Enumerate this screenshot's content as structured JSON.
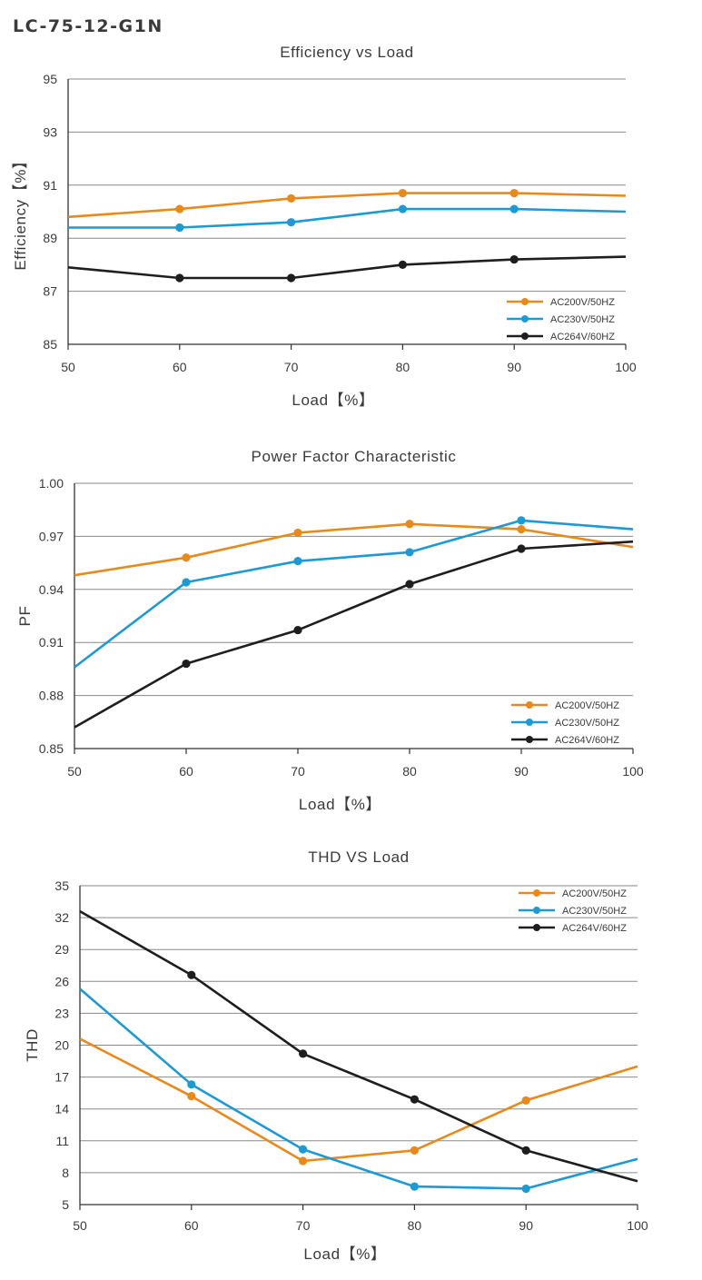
{
  "page": {
    "model": "LC-75-12-G1N"
  },
  "colors": {
    "orange": "#E8891A",
    "blue": "#1B9AD6",
    "black": "#1E1E1E",
    "grid": "#8a8a8a",
    "text": "#3a3a3a"
  },
  "chart_data": [
    {
      "type": "line",
      "title": "Efficiency vs Load",
      "xlabel": "Load【%】",
      "ylabel": "Efficiency【%】",
      "xlim": [
        50,
        100
      ],
      "ylim": [
        85,
        95
      ],
      "xticks": [
        50,
        60,
        70,
        80,
        90,
        100
      ],
      "yticks": [
        85,
        87,
        89,
        91,
        93,
        95
      ],
      "ytick_labels": [
        "85",
        "87",
        "89",
        "91",
        "93",
        "95"
      ],
      "grid": "horizontal",
      "legend_position": "bottom-right",
      "series": [
        {
          "name": "AC200V/50HZ",
          "color": "#E8891A",
          "x": [
            50,
            60,
            70,
            80,
            90,
            100
          ],
          "y": [
            89.8,
            90.1,
            90.5,
            90.7,
            90.7,
            90.6
          ],
          "markers": [
            false,
            true,
            true,
            true,
            true,
            false
          ]
        },
        {
          "name": "AC230V/50HZ",
          "color": "#1B9AD6",
          "x": [
            50,
            60,
            70,
            80,
            90,
            100
          ],
          "y": [
            89.4,
            89.4,
            89.6,
            90.1,
            90.1,
            90.0
          ],
          "markers": [
            false,
            true,
            true,
            true,
            true,
            false
          ]
        },
        {
          "name": "AC264V/60HZ",
          "color": "#1E1E1E",
          "x": [
            50,
            60,
            70,
            80,
            90,
            100
          ],
          "y": [
            87.9,
            87.5,
            87.5,
            88.0,
            88.2,
            88.3
          ],
          "markers": [
            false,
            true,
            true,
            true,
            true,
            false
          ]
        }
      ]
    },
    {
      "type": "line",
      "title": "Power Factor Characteristic",
      "xlabel": "Load【%】",
      "ylabel": "PF",
      "xlim": [
        50,
        100
      ],
      "ylim": [
        0.85,
        1.0
      ],
      "xticks": [
        50,
        60,
        70,
        80,
        90,
        100
      ],
      "yticks": [
        0.85,
        0.88,
        0.91,
        0.94,
        0.97,
        1.0
      ],
      "ytick_labels": [
        "0.85",
        "0.88",
        "0.91",
        "0.94",
        "0.97",
        "1.00"
      ],
      "grid": "horizontal",
      "legend_position": "bottom-right",
      "series": [
        {
          "name": "AC200V/50HZ",
          "color": "#E8891A",
          "x": [
            50,
            60,
            70,
            80,
            90,
            100
          ],
          "y": [
            0.948,
            0.958,
            0.972,
            0.977,
            0.974,
            0.964
          ],
          "markers": [
            false,
            true,
            true,
            true,
            true,
            false
          ]
        },
        {
          "name": "AC230V/50HZ",
          "color": "#1B9AD6",
          "x": [
            50,
            60,
            70,
            80,
            90,
            100
          ],
          "y": [
            0.896,
            0.944,
            0.956,
            0.961,
            0.979,
            0.974
          ],
          "markers": [
            false,
            true,
            true,
            true,
            true,
            false
          ]
        },
        {
          "name": "AC264V/60HZ",
          "color": "#1E1E1E",
          "x": [
            50,
            60,
            70,
            80,
            90,
            100
          ],
          "y": [
            0.862,
            0.898,
            0.917,
            0.943,
            0.963,
            0.967
          ],
          "markers": [
            false,
            true,
            true,
            true,
            true,
            false
          ]
        }
      ]
    },
    {
      "type": "line",
      "title": "THD VS Load",
      "xlabel": "Load【%】",
      "ylabel": "THD",
      "xlim": [
        50,
        100
      ],
      "ylim": [
        5,
        35
      ],
      "xticks": [
        50,
        60,
        70,
        80,
        90,
        100
      ],
      "yticks": [
        5,
        8,
        11,
        14,
        17,
        20,
        23,
        26,
        29,
        32,
        35
      ],
      "ytick_labels": [
        "5",
        "8",
        "11",
        "14",
        "17",
        "20",
        "23",
        "26",
        "29",
        "32",
        "35"
      ],
      "grid": "horizontal",
      "legend_position": "top-right",
      "series": [
        {
          "name": "AC200V/50HZ",
          "color": "#E8891A",
          "x": [
            50,
            60,
            70,
            80,
            90,
            100
          ],
          "y": [
            20.6,
            15.2,
            9.1,
            10.1,
            14.8,
            18.0
          ],
          "markers": [
            false,
            true,
            true,
            true,
            true,
            false
          ]
        },
        {
          "name": "AC230V/50HZ",
          "color": "#1B9AD6",
          "x": [
            50,
            60,
            70,
            80,
            90,
            100
          ],
          "y": [
            25.3,
            16.3,
            10.2,
            6.7,
            6.5,
            9.3
          ],
          "markers": [
            false,
            true,
            true,
            true,
            true,
            false
          ]
        },
        {
          "name": "AC264V/60HZ",
          "color": "#1E1E1E",
          "x": [
            50,
            60,
            70,
            80,
            90,
            100
          ],
          "y": [
            32.6,
            26.6,
            19.2,
            14.9,
            10.1,
            7.2
          ],
          "markers": [
            false,
            true,
            true,
            true,
            true,
            false
          ]
        }
      ]
    }
  ]
}
